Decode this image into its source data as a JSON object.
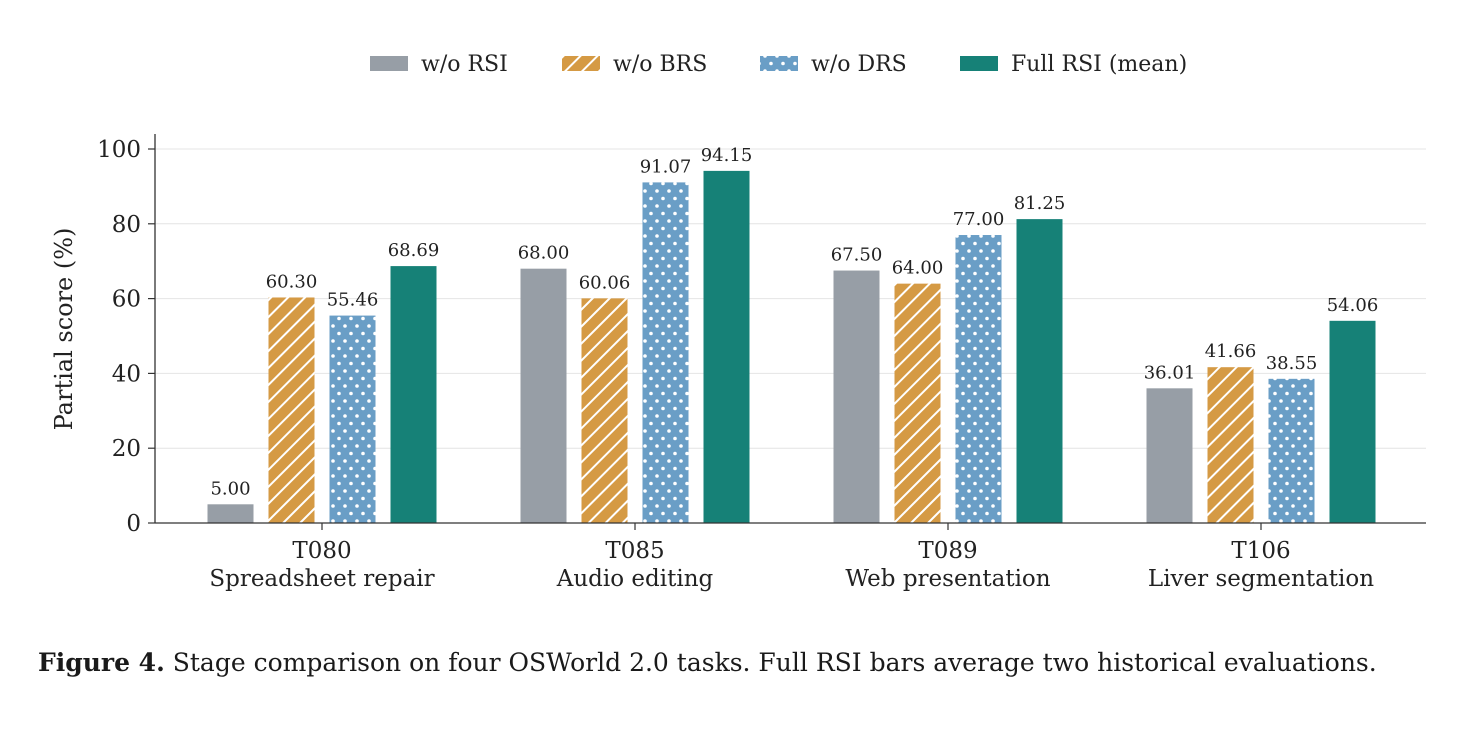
{
  "chart_data": {
    "type": "bar",
    "ylabel": "Partial score (%)",
    "xlabel": "",
    "ylim": [
      0,
      100
    ],
    "yticks": [
      0,
      20,
      40,
      60,
      80,
      100
    ],
    "grid": "horizontal",
    "legend_position": "top-center",
    "categories": [
      {
        "code": "T080",
        "name": "Spreadsheet repair"
      },
      {
        "code": "T085",
        "name": "Audio editing"
      },
      {
        "code": "T089",
        "name": "Web presentation"
      },
      {
        "code": "T106",
        "name": "Liver segmentation"
      }
    ],
    "series": [
      {
        "name": "w/o RSI",
        "color": "#979ea6",
        "pattern": "solid",
        "values": [
          5.0,
          68.0,
          67.5,
          36.01
        ]
      },
      {
        "name": "w/o BRS",
        "color": "#d59a44",
        "pattern": "diagonal-hatch",
        "values": [
          60.3,
          60.06,
          64.0,
          41.66
        ]
      },
      {
        "name": "w/o DRS",
        "color": "#6a9ec6",
        "pattern": "dots",
        "values": [
          55.46,
          91.07,
          77.0,
          38.55
        ]
      },
      {
        "name": "Full RSI (mean)",
        "color": "#168177",
        "pattern": "solid",
        "values": [
          68.69,
          94.15,
          81.25,
          54.06
        ]
      }
    ]
  },
  "caption": {
    "label": "Figure 4.",
    "text": " Stage comparison on four OSWorld 2.0 tasks. Full RSI bars average two historical evaluations."
  }
}
